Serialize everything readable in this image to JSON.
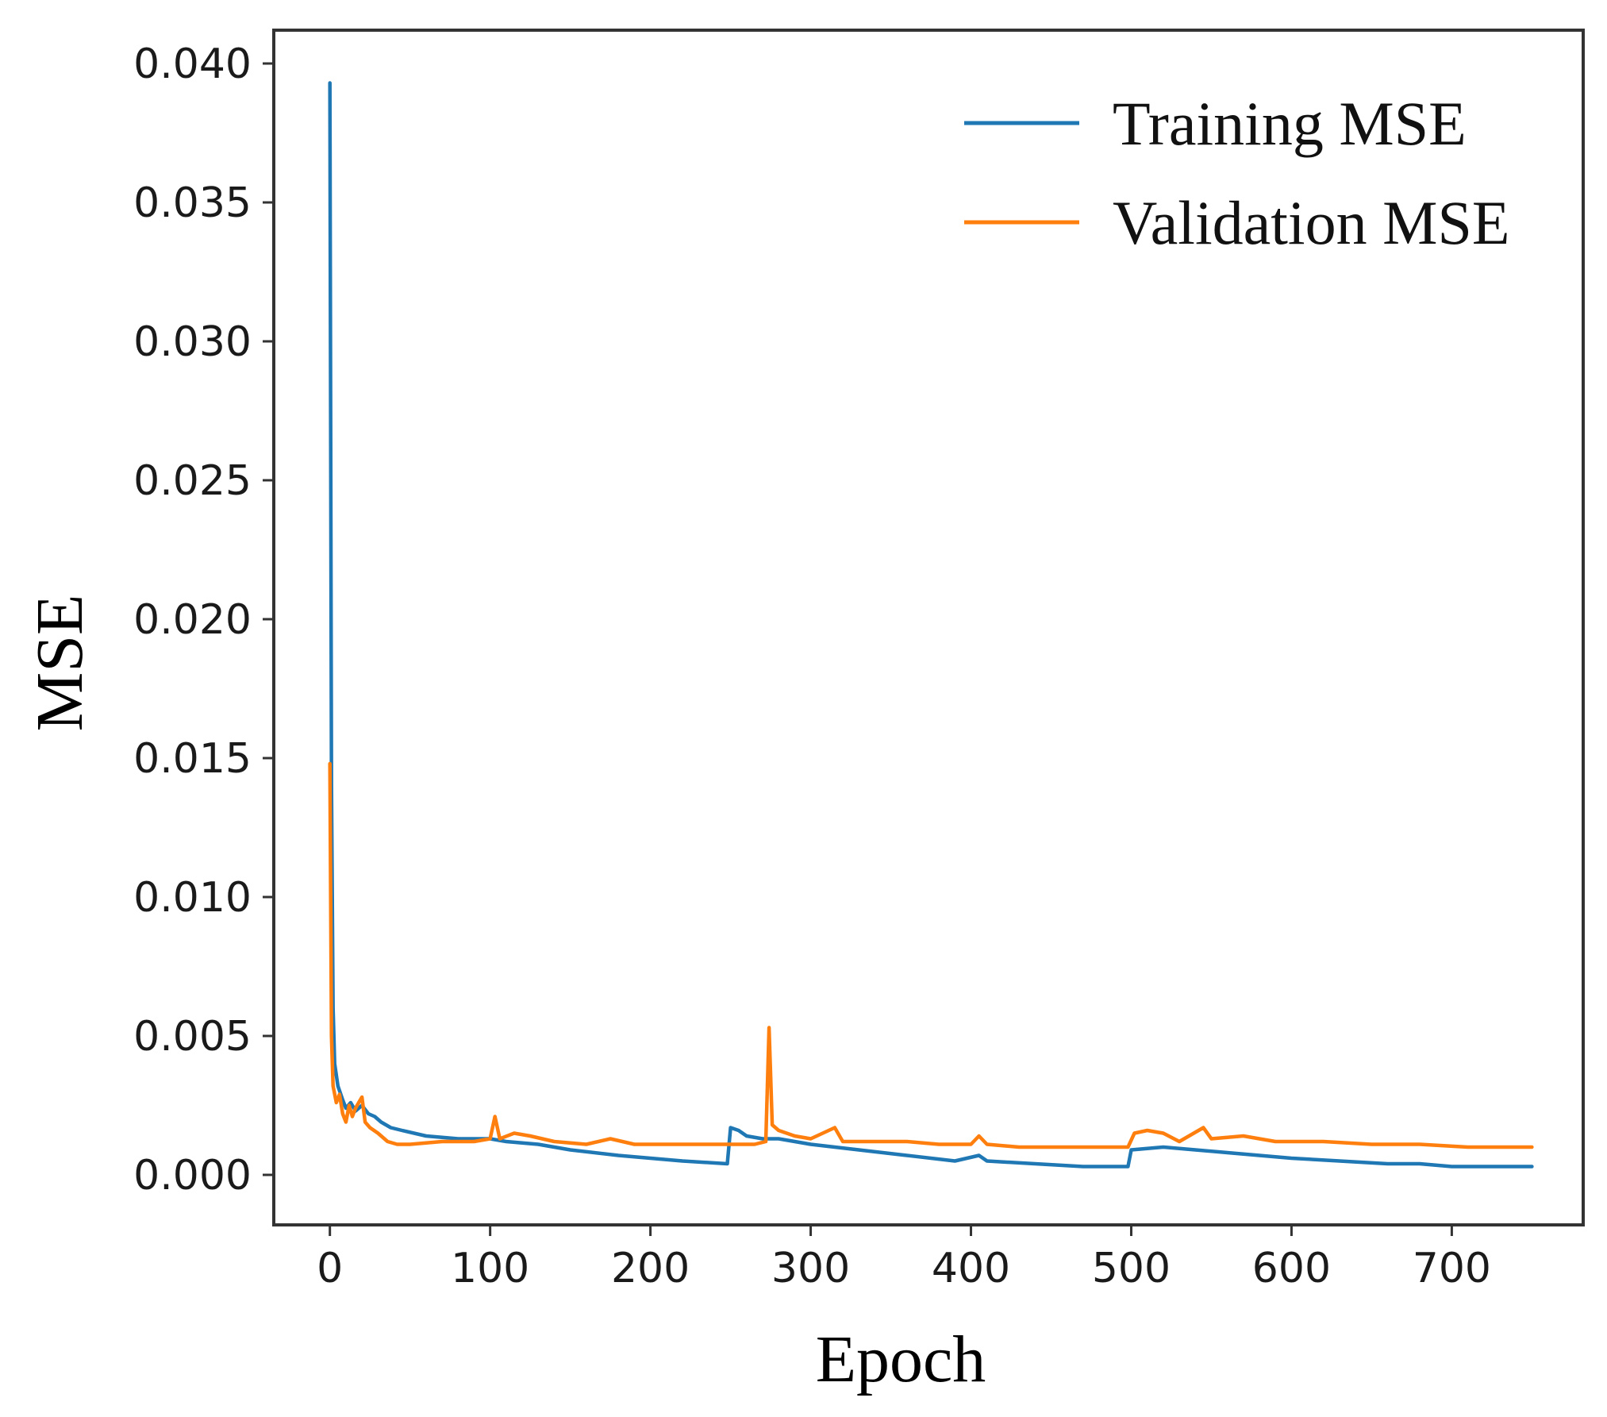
{
  "chart_data": {
    "type": "line",
    "title": "",
    "xlabel": "Epoch",
    "ylabel": "MSE",
    "xlim": [
      -35,
      782
    ],
    "ylim": [
      -0.0018,
      0.0412
    ],
    "xticks": [
      0,
      100,
      200,
      300,
      400,
      500,
      600,
      700
    ],
    "yticks": [
      0.0,
      0.005,
      0.01,
      0.015,
      0.02,
      0.025,
      0.03,
      0.035,
      0.04
    ],
    "xtick_labels": [
      "0",
      "100",
      "200",
      "300",
      "400",
      "500",
      "600",
      "700"
    ],
    "ytick_labels": [
      "0.000",
      "0.005",
      "0.010",
      "0.015",
      "0.020",
      "0.025",
      "0.030",
      "0.035",
      "0.040"
    ],
    "grid": false,
    "legend": {
      "position": "top-right"
    },
    "series": [
      {
        "name": "Training MSE",
        "color": "#1f77b4",
        "points": [
          [
            0,
            0.0393
          ],
          [
            1,
            0.014
          ],
          [
            2,
            0.006
          ],
          [
            3,
            0.004
          ],
          [
            5,
            0.0032
          ],
          [
            8,
            0.0027
          ],
          [
            10,
            0.0024
          ],
          [
            13,
            0.0026
          ],
          [
            16,
            0.0023
          ],
          [
            20,
            0.0025
          ],
          [
            24,
            0.0022
          ],
          [
            28,
            0.0021
          ],
          [
            32,
            0.0019
          ],
          [
            38,
            0.0017
          ],
          [
            45,
            0.0016
          ],
          [
            60,
            0.0014
          ],
          [
            80,
            0.0013
          ],
          [
            100,
            0.0013
          ],
          [
            110,
            0.0012
          ],
          [
            130,
            0.0011
          ],
          [
            150,
            0.0009
          ],
          [
            180,
            0.0007
          ],
          [
            200,
            0.0006
          ],
          [
            220,
            0.0005
          ],
          [
            248,
            0.0004
          ],
          [
            250,
            0.0017
          ],
          [
            255,
            0.0016
          ],
          [
            260,
            0.0014
          ],
          [
            270,
            0.0013
          ],
          [
            280,
            0.0013
          ],
          [
            300,
            0.0011
          ],
          [
            330,
            0.0009
          ],
          [
            360,
            0.0007
          ],
          [
            390,
            0.0005
          ],
          [
            405,
            0.0007
          ],
          [
            410,
            0.0005
          ],
          [
            440,
            0.0004
          ],
          [
            470,
            0.0003
          ],
          [
            498,
            0.0003
          ],
          [
            500,
            0.0009
          ],
          [
            520,
            0.001
          ],
          [
            540,
            0.0009
          ],
          [
            560,
            0.0008
          ],
          [
            580,
            0.0007
          ],
          [
            600,
            0.0006
          ],
          [
            630,
            0.0005
          ],
          [
            660,
            0.0004
          ],
          [
            680,
            0.0004
          ],
          [
            700,
            0.0003
          ],
          [
            730,
            0.0003
          ],
          [
            750,
            0.0003
          ]
        ]
      },
      {
        "name": "Validation MSE",
        "color": "#ff7f0e",
        "points": [
          [
            0,
            0.0148
          ],
          [
            1,
            0.005
          ],
          [
            2,
            0.0032
          ],
          [
            4,
            0.0026
          ],
          [
            6,
            0.0029
          ],
          [
            8,
            0.0022
          ],
          [
            10,
            0.0019
          ],
          [
            12,
            0.0025
          ],
          [
            14,
            0.0021
          ],
          [
            16,
            0.0024
          ],
          [
            18,
            0.0026
          ],
          [
            20,
            0.0028
          ],
          [
            22,
            0.0019
          ],
          [
            25,
            0.0017
          ],
          [
            30,
            0.0015
          ],
          [
            36,
            0.0012
          ],
          [
            42,
            0.0011
          ],
          [
            50,
            0.0011
          ],
          [
            70,
            0.0012
          ],
          [
            90,
            0.0012
          ],
          [
            100,
            0.0013
          ],
          [
            103,
            0.0021
          ],
          [
            106,
            0.0013
          ],
          [
            115,
            0.0015
          ],
          [
            125,
            0.0014
          ],
          [
            140,
            0.0012
          ],
          [
            160,
            0.0011
          ],
          [
            175,
            0.0013
          ],
          [
            190,
            0.0011
          ],
          [
            210,
            0.0011
          ],
          [
            230,
            0.0011
          ],
          [
            250,
            0.0011
          ],
          [
            265,
            0.0011
          ],
          [
            272,
            0.0012
          ],
          [
            274,
            0.0053
          ],
          [
            276,
            0.0018
          ],
          [
            280,
            0.0016
          ],
          [
            290,
            0.0014
          ],
          [
            300,
            0.0013
          ],
          [
            315,
            0.0017
          ],
          [
            320,
            0.0012
          ],
          [
            340,
            0.0012
          ],
          [
            360,
            0.0012
          ],
          [
            380,
            0.0011
          ],
          [
            400,
            0.0011
          ],
          [
            405,
            0.0014
          ],
          [
            410,
            0.0011
          ],
          [
            430,
            0.001
          ],
          [
            460,
            0.001
          ],
          [
            498,
            0.001
          ],
          [
            502,
            0.0015
          ],
          [
            510,
            0.0016
          ],
          [
            520,
            0.0015
          ],
          [
            530,
            0.0012
          ],
          [
            545,
            0.0017
          ],
          [
            550,
            0.0013
          ],
          [
            570,
            0.0014
          ],
          [
            590,
            0.0012
          ],
          [
            620,
            0.0012
          ],
          [
            650,
            0.0011
          ],
          [
            680,
            0.0011
          ],
          [
            710,
            0.001
          ],
          [
            750,
            0.001
          ]
        ]
      }
    ]
  }
}
